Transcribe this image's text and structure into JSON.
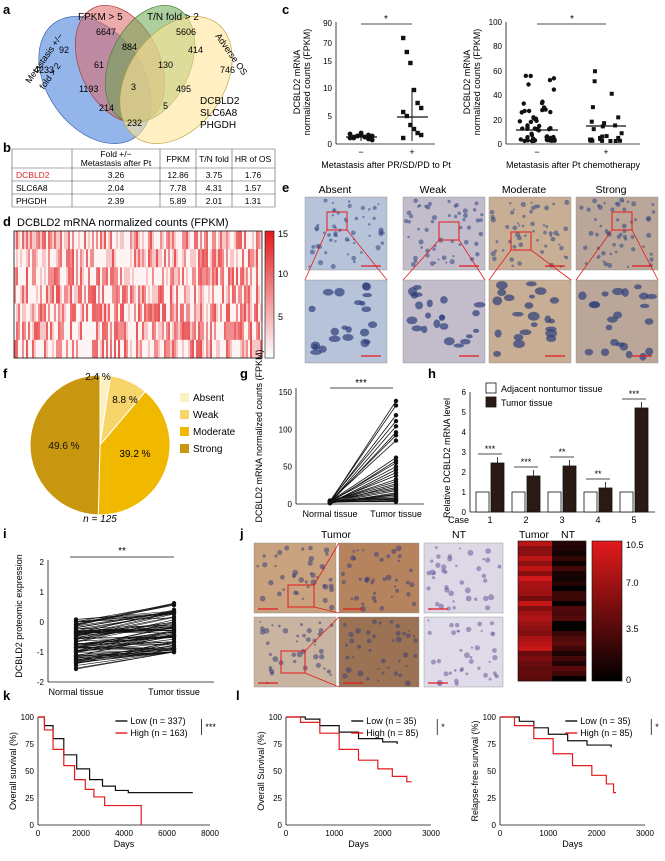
{
  "panels": [
    "a",
    "b",
    "c",
    "d",
    "e",
    "f",
    "g",
    "h",
    "i",
    "j",
    "k",
    "l"
  ],
  "venn": {
    "labels": [
      "FPKM > 5",
      "T/N fold > 2",
      "Metastasis +/−",
      "fold > 2",
      "Adverse OS"
    ],
    "counts": [
      "6647",
      "5606",
      "92",
      "884",
      "414",
      "4233",
      "61",
      "130",
      "746",
      "3",
      "1193",
      "495",
      "214",
      "5",
      "232"
    ],
    "genes": [
      "DCBLD2",
      "SLC6A8",
      "PHGDH"
    ]
  },
  "table_b": {
    "headers": [
      "Fold +/−",
      "Metastasis after Pt",
      "FPKM",
      "T/N fold",
      "HR of OS"
    ],
    "rows": [
      {
        "gene": "DCBLD2",
        "fold": "3.26",
        "fpkm": "12.86",
        "tn": "3.75",
        "hr": "1.76"
      },
      {
        "gene": "SLC6A8",
        "fold": "2.04",
        "fpkm": "7.78",
        "tn": "4.31",
        "hr": "1.57"
      },
      {
        "gene": "PHGDH",
        "fold": "2.39",
        "fpkm": "5.89",
        "tn": "2.01",
        "hr": "1.31"
      }
    ]
  },
  "panel_c": {
    "ylabel1": "DCBLD2 mRNA",
    "ylabel2": "normalized counts (FPKM)",
    "left": {
      "xlabel": "Metastasis after PR/SD/PD to Pt",
      "ticks": [
        "0",
        "5",
        "10",
        "15",
        "70",
        "90"
      ],
      "groups": [
        "−",
        "+"
      ],
      "sig": "*"
    },
    "right": {
      "xlabel": "Metastasis after Pt chemotherapy",
      "ticks": [
        "0",
        "20",
        "40",
        "60",
        "80",
        "100"
      ],
      "groups": [
        "−",
        "+"
      ],
      "sig": "*"
    }
  },
  "panel_d": {
    "title": "DCBLD2 mRNA normalized counts (FPKM)",
    "scale": [
      "15",
      "10",
      "5"
    ]
  },
  "panel_e": {
    "labels": [
      "Absent",
      "Weak",
      "Moderate",
      "Strong"
    ]
  },
  "chart_data": [
    {
      "type": "pie",
      "categories": [
        "Absent",
        "Weak",
        "Moderate",
        "Strong"
      ],
      "values": [
        2.4,
        8.8,
        39.2,
        49.6
      ],
      "value_labels": [
        "2.4 %",
        "8.8 %",
        "39.2 %",
        "49.6 %"
      ],
      "colors": [
        "#fdf0c0",
        "#f7d56a",
        "#f1b800",
        "#c9960f"
      ],
      "annotation": "n = 125"
    },
    {
      "type": "line",
      "ylabel": "DCBLD2 mRNA normalized counts (FPKM)",
      "categories": [
        "Normal tissue",
        "Tumor tissue"
      ],
      "ylim": [
        0,
        150
      ],
      "ticks": [
        "0",
        "50",
        "100",
        "150"
      ],
      "sig": "***"
    },
    {
      "type": "bar",
      "ylabel": "Relative DCBLD2 mRNA level",
      "xlabel_prefix": "Case",
      "categories": [
        "1",
        "2",
        "3",
        "4",
        "5"
      ],
      "ylim": [
        0,
        6
      ],
      "ticks": [
        "0",
        "1",
        "2",
        "3",
        "4",
        "5",
        "6"
      ],
      "series": [
        {
          "name": "Adjacent nontumor tissue",
          "values": [
            1.0,
            1.0,
            1.0,
            1.0,
            1.0
          ]
        },
        {
          "name": "Tumor tissue",
          "values": [
            2.45,
            1.8,
            2.3,
            1.2,
            5.2
          ]
        }
      ],
      "sig": [
        "***",
        "***",
        "**",
        "**",
        "***"
      ]
    },
    {
      "type": "line",
      "ylabel": "DCBLD2 proteomic expression",
      "categories": [
        "Normal tissue",
        "Tumor tissue"
      ],
      "ylim": [
        -2,
        2
      ],
      "ticks": [
        "-2",
        "-1",
        "0",
        "1",
        "2"
      ],
      "sig": "**"
    },
    {
      "type": "heatmap",
      "columns": [
        "Tumor",
        "NT"
      ],
      "scale": [
        "10.5",
        "7.0",
        "3.5",
        "0"
      ]
    },
    {
      "type": "line",
      "ylabel": "Overall survival (%)",
      "xlabel": "Days",
      "xticks": [
        "0",
        "2000",
        "4000",
        "6000",
        "8000"
      ],
      "yticks": [
        "0",
        "25",
        "50",
        "75",
        "100"
      ],
      "series": [
        {
          "name": "Low (n = 337)"
        },
        {
          "name": "High (n = 163)"
        }
      ],
      "sig": "***"
    },
    {
      "type": "line",
      "ylabel": "Overall Survival (%)",
      "xlabel": "Days",
      "xticks": [
        "0",
        "1000",
        "2000",
        "3000"
      ],
      "yticks": [
        "0",
        "25",
        "50",
        "75",
        "100"
      ],
      "series": [
        {
          "name": "Low (n = 35)"
        },
        {
          "name": "High (n = 85)"
        }
      ],
      "sig": "*"
    },
    {
      "type": "line",
      "ylabel": "Relapse-free survival (%)",
      "xlabel": "Days",
      "xticks": [
        "0",
        "1000",
        "2000",
        "3000"
      ],
      "yticks": [
        "0",
        "25",
        "50",
        "75",
        "100"
      ],
      "series": [
        {
          "name": "Low (n = 35)"
        },
        {
          "name": "High (n = 85)"
        }
      ],
      "sig": "*"
    }
  ],
  "panel_j": {
    "labels": [
      "Tumor",
      "NT"
    ]
  },
  "colors": {
    "red": "#e41a1c",
    "black": "#111111",
    "accent_red": "#d62728"
  }
}
